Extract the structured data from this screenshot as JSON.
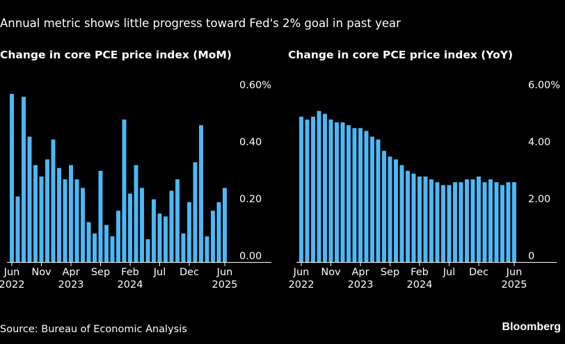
{
  "header": {
    "subtitle": "Annual metric shows little progress toward Fed's 2% goal in past year"
  },
  "footer": {
    "source": "Source: Bureau of Economic Analysis",
    "brand": "Bloomberg"
  },
  "colors": {
    "bar": "#4cb8f7",
    "background": "#000000",
    "text": "#ffffff",
    "axis": "#ffffff"
  },
  "chart_data": [
    {
      "type": "bar",
      "title": "Change in core PCE price index (MoM)",
      "x_ticks": [
        {
          "month": "Jun",
          "year": "2022"
        },
        {
          "month": "Nov",
          "year": ""
        },
        {
          "month": "Apr",
          "year": "2023"
        },
        {
          "month": "Sep",
          "year": ""
        },
        {
          "month": "Feb",
          "year": "2024"
        },
        {
          "month": "Jul",
          "year": ""
        },
        {
          "month": "Dec",
          "year": ""
        },
        {
          "month": "Jun",
          "year": "2025"
        }
      ],
      "x_tick_index": [
        0,
        5,
        10,
        15,
        20,
        25,
        30,
        36
      ],
      "y_ticks": [
        "0.00",
        "0.20",
        "0.40",
        "0.60%"
      ],
      "y_tick_values": [
        0,
        0.2,
        0.4,
        0.6
      ],
      "ylim": [
        0,
        0.6
      ],
      "grid": false,
      "values": [
        0.59,
        0.23,
        0.58,
        0.44,
        0.34,
        0.3,
        0.36,
        0.43,
        0.33,
        0.29,
        0.34,
        0.29,
        0.26,
        0.14,
        0.1,
        0.32,
        0.13,
        0.09,
        0.18,
        0.5,
        0.24,
        0.34,
        0.26,
        0.08,
        0.22,
        0.17,
        0.16,
        0.25,
        0.29,
        0.1,
        0.21,
        0.35,
        0.48,
        0.09,
        0.18,
        0.21,
        0.26
      ]
    },
    {
      "type": "bar",
      "title": "Change in core PCE price index (YoY)",
      "x_ticks": [
        {
          "month": "Jun",
          "year": "2022"
        },
        {
          "month": "Nov",
          "year": ""
        },
        {
          "month": "Apr",
          "year": "2023"
        },
        {
          "month": "Sep",
          "year": ""
        },
        {
          "month": "Feb",
          "year": "2024"
        },
        {
          "month": "Jul",
          "year": ""
        },
        {
          "month": "Dec",
          "year": ""
        },
        {
          "month": "Jun",
          "year": "2025"
        }
      ],
      "x_tick_index": [
        0,
        5,
        10,
        15,
        20,
        25,
        30,
        36
      ],
      "y_ticks": [
        "0",
        "2.00",
        "4.00",
        "6.00%"
      ],
      "y_tick_values": [
        0,
        2,
        4,
        6
      ],
      "ylim": [
        0,
        6
      ],
      "grid": false,
      "values": [
        5.1,
        5.0,
        5.1,
        5.3,
        5.2,
        5.0,
        4.9,
        4.9,
        4.8,
        4.7,
        4.7,
        4.6,
        4.4,
        4.3,
        3.9,
        3.7,
        3.6,
        3.4,
        3.2,
        3.1,
        3.0,
        3.0,
        2.9,
        2.8,
        2.7,
        2.7,
        2.8,
        2.8,
        2.9,
        2.9,
        3.0,
        2.8,
        2.9,
        2.8,
        2.7,
        2.8,
        2.8
      ]
    }
  ]
}
